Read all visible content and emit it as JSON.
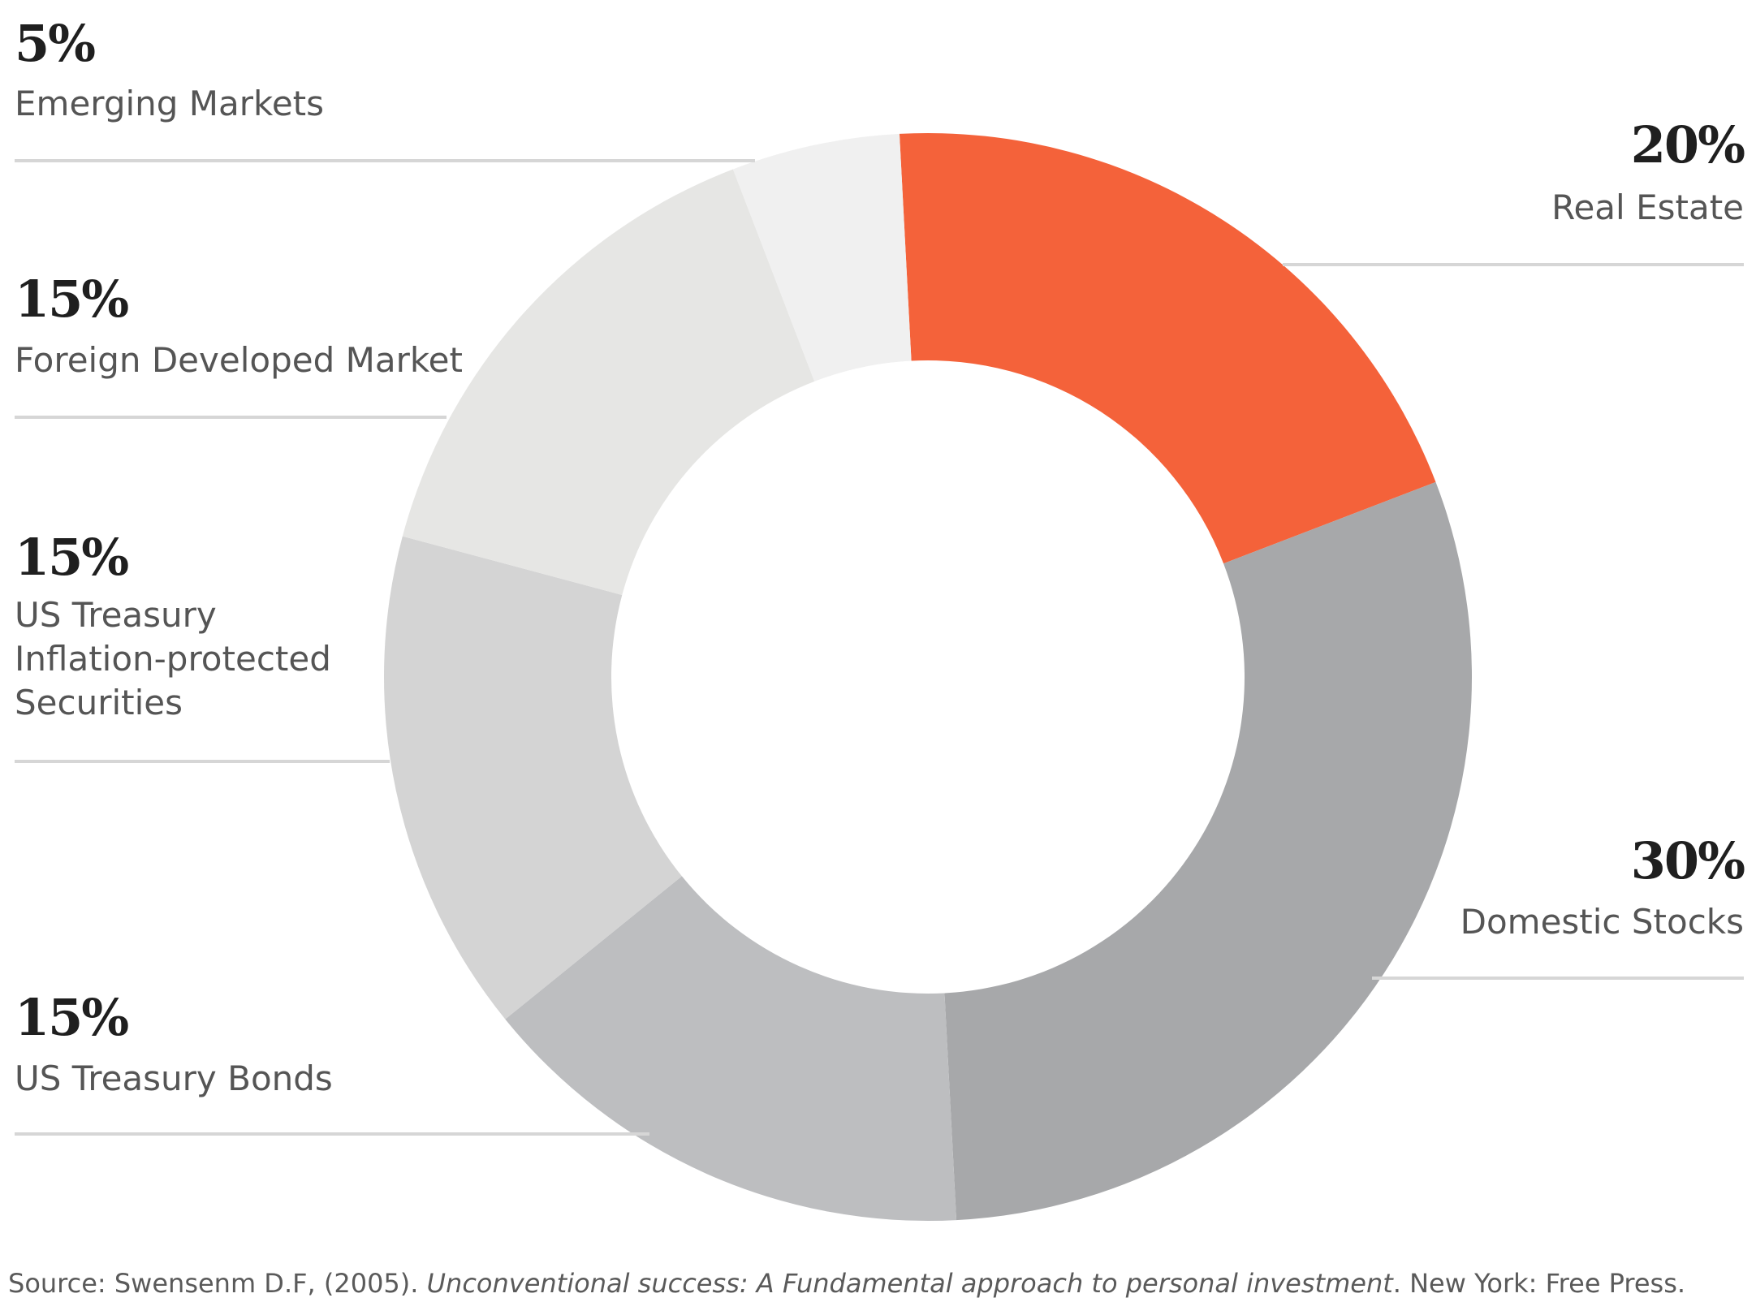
{
  "chart_data": {
    "type": "pie",
    "donut": true,
    "slices": [
      {
        "label": "Real Estate",
        "value": 20,
        "value_label": "20%",
        "color": "#f4623a"
      },
      {
        "label": "Domestic Stocks",
        "value": 30,
        "value_label": "30%",
        "color": "#a7a8aa"
      },
      {
        "label": "US Treasury Bonds",
        "value": 15,
        "value_label": "15%",
        "color": "#bdbec0"
      },
      {
        "label": "US Treasury Inflation-protected Securities",
        "label_lines": [
          "US Treasury",
          "Inflation-protected",
          "Securities"
        ],
        "value": 15,
        "value_label": "15%",
        "color": "#d4d4d4"
      },
      {
        "label": "Foreign Developed Market",
        "value": 15,
        "value_label": "15%",
        "color": "#e6e6e4"
      },
      {
        "label": "Emerging Markets",
        "value": 5,
        "value_label": "5%",
        "color": "#f0f0f0"
      }
    ]
  },
  "source": {
    "prefix": "Source: Swensenm D.F, (2005). ",
    "title": "Unconventional success: A Fundamental approach to personal investment",
    "suffix": ". New York: Free Press."
  },
  "colors": {
    "accent": "#f4623a",
    "leader_line": "#d6d6d6"
  }
}
